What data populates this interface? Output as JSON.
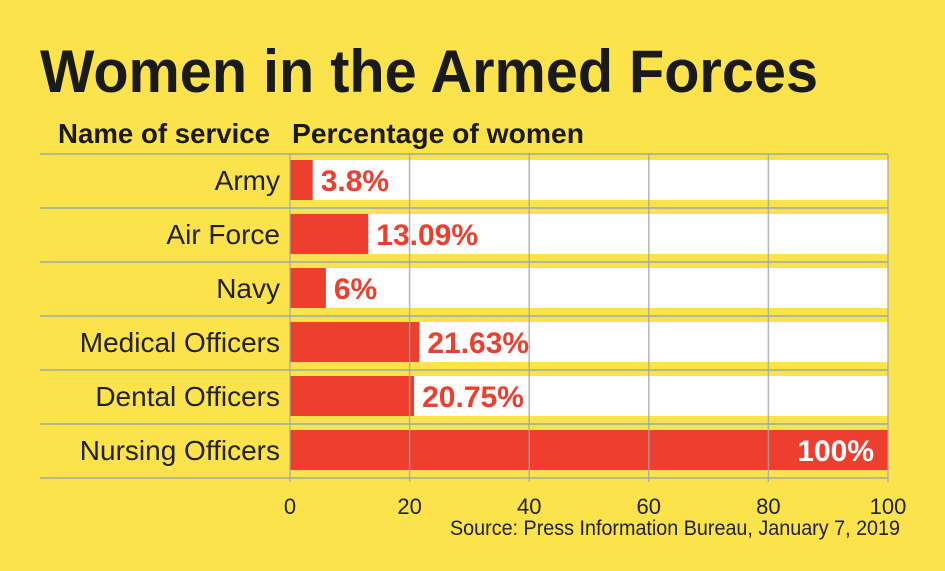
{
  "chart_data": {
    "type": "bar",
    "orientation": "horizontal",
    "title": "Women in the Armed Forces",
    "column_headers": [
      "Name of service",
      "Percentage of women"
    ],
    "categories": [
      "Army",
      "Air Force",
      "Navy",
      "Medical Officers",
      "Dental Officers",
      "Nursing Officers"
    ],
    "values": [
      3.8,
      13.09,
      6,
      21.63,
      20.75,
      100
    ],
    "value_labels": [
      "3.8%",
      "13.09%",
      "6%",
      "21.63%",
      "20.75%",
      "100%"
    ],
    "xlim": [
      0,
      100
    ],
    "xticks": [
      0,
      20,
      40,
      60,
      80,
      100
    ],
    "grid": true,
    "source": "Source: Press Information Bureau, January 7, 2019",
    "colors": {
      "background": "#FDE34B",
      "bar": "#EE3E2D",
      "track": "#FFFFFF",
      "grid": "#9AA9A8"
    }
  }
}
